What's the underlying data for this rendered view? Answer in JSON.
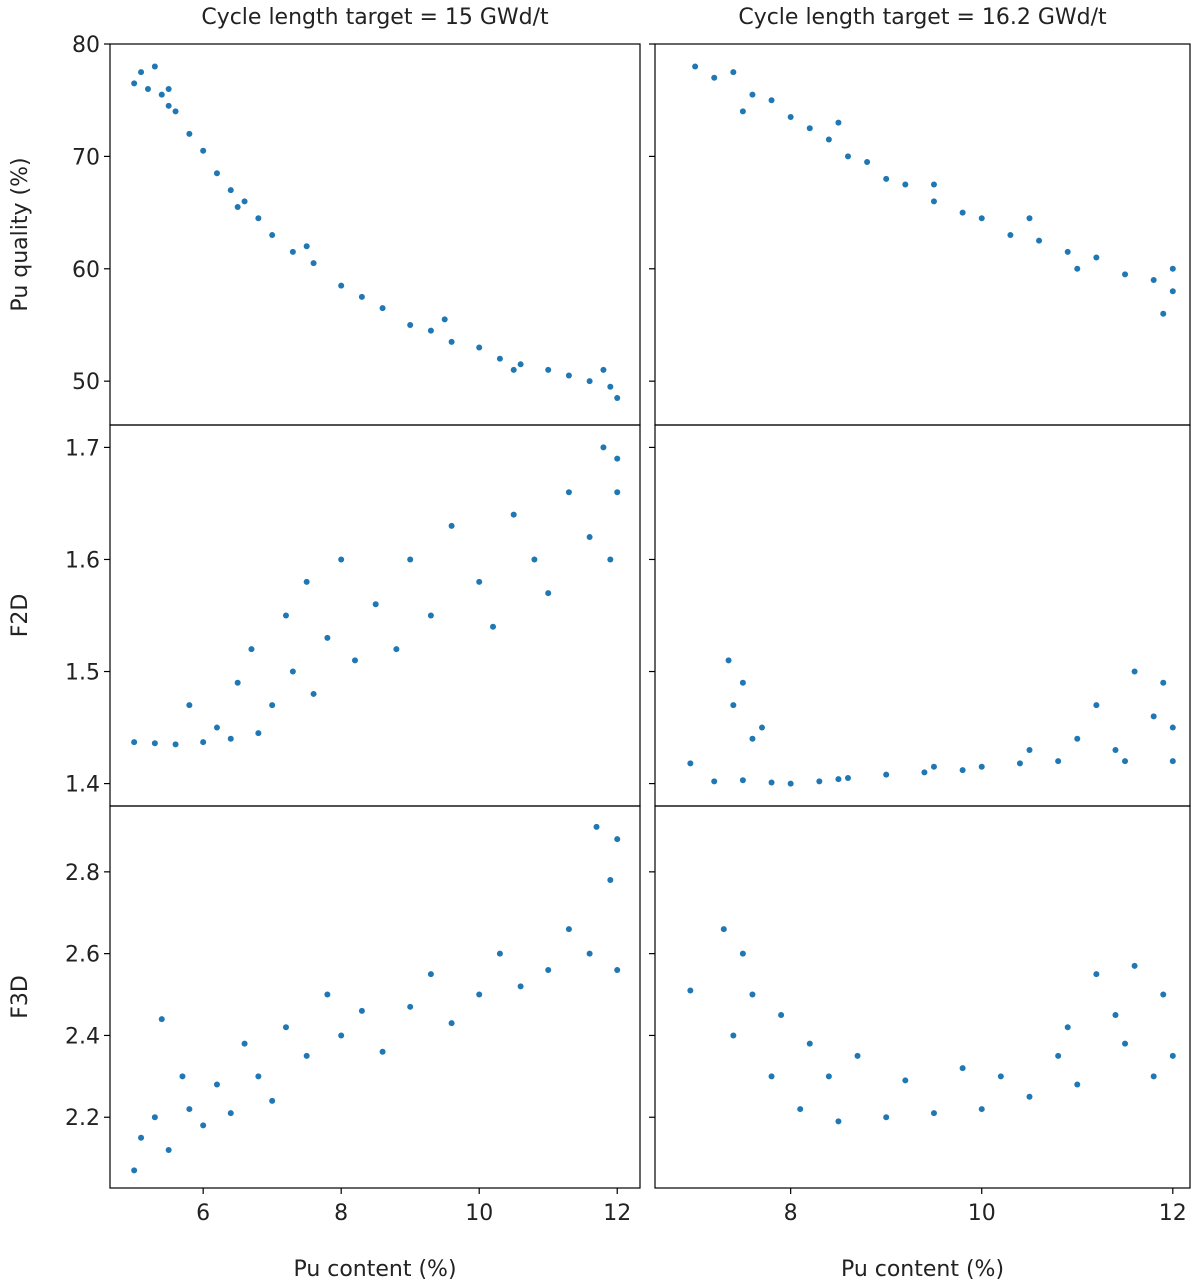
{
  "chart_data": [
    {
      "type": "scatter",
      "title": "Cycle length target = 15 GWd/t",
      "ylabel": "Pu quality (%)",
      "color": "#1f77b4",
      "x": [
        5.0,
        5.1,
        5.2,
        5.3,
        5.4,
        5.5,
        5.6,
        5.8,
        6.0,
        6.2,
        6.4,
        6.6,
        6.8,
        7.0,
        7.3,
        7.6,
        8.0,
        8.3,
        8.6,
        9.0,
        9.3,
        9.6,
        10.0,
        10.3,
        10.6,
        11.0,
        11.3,
        11.6,
        11.9,
        12.0,
        5.5,
        6.5,
        7.5,
        9.5,
        10.5,
        11.8
      ],
      "y": [
        76.5,
        77.5,
        76,
        78,
        75.5,
        74.5,
        74,
        72,
        70.5,
        68.5,
        67,
        66,
        64.5,
        63,
        61.5,
        60.5,
        58.5,
        57.5,
        56.5,
        55,
        54.5,
        53.5,
        53,
        52,
        51.5,
        51,
        50.5,
        50,
        49.5,
        48.5,
        76,
        65.5,
        62,
        55.5,
        51,
        51
      ],
      "xlim": [
        4.65,
        12.33
      ],
      "ylim": [
        46.1,
        80
      ],
      "yticks": [
        50,
        60,
        70,
        80
      ]
    },
    {
      "type": "scatter",
      "title": "Cycle length target = 16.2 GWd/t",
      "color": "#1f77b4",
      "x": [
        7.0,
        7.2,
        7.4,
        7.6,
        7.8,
        8.0,
        8.2,
        8.4,
        8.6,
        8.8,
        9.0,
        9.2,
        9.5,
        9.8,
        10.0,
        10.3,
        10.6,
        10.9,
        11.2,
        11.5,
        11.8,
        12.0,
        7.5,
        8.5,
        9.5,
        10.5,
        11.0,
        11.9,
        12.0
      ],
      "y": [
        78,
        77,
        77.5,
        75.5,
        75,
        73.5,
        72.5,
        71.5,
        70,
        69.5,
        68,
        67.5,
        66,
        65,
        64.5,
        63,
        62.5,
        61.5,
        61,
        59.5,
        59,
        58,
        74,
        73,
        67.5,
        64.5,
        60,
        56,
        60
      ],
      "xlim": [
        6.58,
        12.18
      ],
      "ylim": [
        46.1,
        80
      ]
    },
    {
      "type": "scatter",
      "ylabel": "F2D",
      "color": "#1f77b4",
      "x": [
        5.0,
        5.3,
        5.6,
        5.8,
        6.0,
        6.2,
        6.4,
        6.5,
        6.7,
        6.8,
        7.0,
        7.2,
        7.3,
        7.5,
        7.6,
        7.8,
        8.0,
        8.2,
        8.5,
        8.8,
        9.0,
        9.3,
        9.6,
        10.0,
        10.2,
        10.5,
        10.8,
        11.0,
        11.3,
        11.6,
        11.8,
        12.0,
        11.9,
        12.0
      ],
      "y": [
        1.437,
        1.436,
        1.435,
        1.47,
        1.437,
        1.45,
        1.44,
        1.49,
        1.52,
        1.445,
        1.47,
        1.55,
        1.5,
        1.58,
        1.48,
        1.53,
        1.6,
        1.51,
        1.56,
        1.52,
        1.6,
        1.55,
        1.63,
        1.58,
        1.54,
        1.64,
        1.6,
        1.57,
        1.66,
        1.62,
        1.7,
        1.66,
        1.6,
        1.69
      ],
      "xlim": [
        4.65,
        12.33
      ],
      "ylim": [
        1.38,
        1.72
      ],
      "yticks": [
        1.4,
        1.5,
        1.6,
        1.7
      ]
    },
    {
      "type": "scatter",
      "color": "#1f77b4",
      "x": [
        6.95,
        7.2,
        7.35,
        7.4,
        7.5,
        7.6,
        7.7,
        7.5,
        7.8,
        8.0,
        8.3,
        8.6,
        9.0,
        9.4,
        9.8,
        10.0,
        10.4,
        10.8,
        11.0,
        11.2,
        11.4,
        11.6,
        11.8,
        11.9,
        12.0,
        12.0,
        11.5,
        10.5,
        9.5,
        8.5
      ],
      "y": [
        1.418,
        1.402,
        1.51,
        1.47,
        1.49,
        1.44,
        1.45,
        1.403,
        1.401,
        1.4,
        1.402,
        1.405,
        1.408,
        1.41,
        1.412,
        1.415,
        1.418,
        1.42,
        1.44,
        1.47,
        1.43,
        1.5,
        1.46,
        1.49,
        1.42,
        1.45,
        1.42,
        1.43,
        1.415,
        1.404
      ],
      "xlim": [
        6.58,
        12.18
      ],
      "ylim": [
        1.38,
        1.72
      ]
    },
    {
      "type": "scatter",
      "ylabel": "F3D",
      "xlabel": "Pu content (%)",
      "color": "#1f77b4",
      "x": [
        5.0,
        5.1,
        5.3,
        5.4,
        5.5,
        5.7,
        5.8,
        6.0,
        6.2,
        6.4,
        6.6,
        6.8,
        7.0,
        7.2,
        7.5,
        7.8,
        8.0,
        8.3,
        8.6,
        9.0,
        9.3,
        9.6,
        10.0,
        10.3,
        10.6,
        11.0,
        11.3,
        11.6,
        11.7,
        11.9,
        12.0,
        12.0
      ],
      "y": [
        2.07,
        2.15,
        2.2,
        2.44,
        2.12,
        2.3,
        2.22,
        2.18,
        2.28,
        2.21,
        2.38,
        2.3,
        2.24,
        2.42,
        2.35,
        2.5,
        2.4,
        2.46,
        2.36,
        2.47,
        2.55,
        2.43,
        2.5,
        2.6,
        2.52,
        2.56,
        2.66,
        2.6,
        2.91,
        2.78,
        2.56,
        2.88
      ],
      "xlim": [
        4.65,
        12.33
      ],
      "ylim": [
        2.027,
        2.961
      ],
      "xticks": [
        6,
        8,
        10,
        12
      ],
      "yticks": [
        2.2,
        2.4,
        2.6,
        2.8
      ]
    },
    {
      "type": "scatter",
      "xlabel": "Pu content (%)",
      "color": "#1f77b4",
      "x": [
        6.95,
        7.3,
        7.4,
        7.5,
        7.6,
        7.8,
        7.9,
        8.1,
        8.2,
        8.4,
        8.5,
        8.7,
        9.0,
        9.2,
        9.5,
        9.8,
        10.0,
        10.2,
        10.5,
        10.8,
        11.0,
        11.2,
        11.4,
        11.6,
        11.8,
        11.9,
        12.0,
        11.5,
        10.9
      ],
      "y": [
        2.51,
        2.66,
        2.4,
        2.6,
        2.5,
        2.3,
        2.45,
        2.22,
        2.38,
        2.3,
        2.19,
        2.35,
        2.2,
        2.29,
        2.21,
        2.32,
        2.22,
        2.3,
        2.25,
        2.35,
        2.28,
        2.55,
        2.45,
        2.57,
        2.3,
        2.5,
        2.35,
        2.38,
        2.42
      ],
      "xlim": [
        6.58,
        12.18
      ],
      "ylim": [
        2.027,
        2.961
      ],
      "xticks": [
        8,
        10,
        12
      ]
    }
  ]
}
